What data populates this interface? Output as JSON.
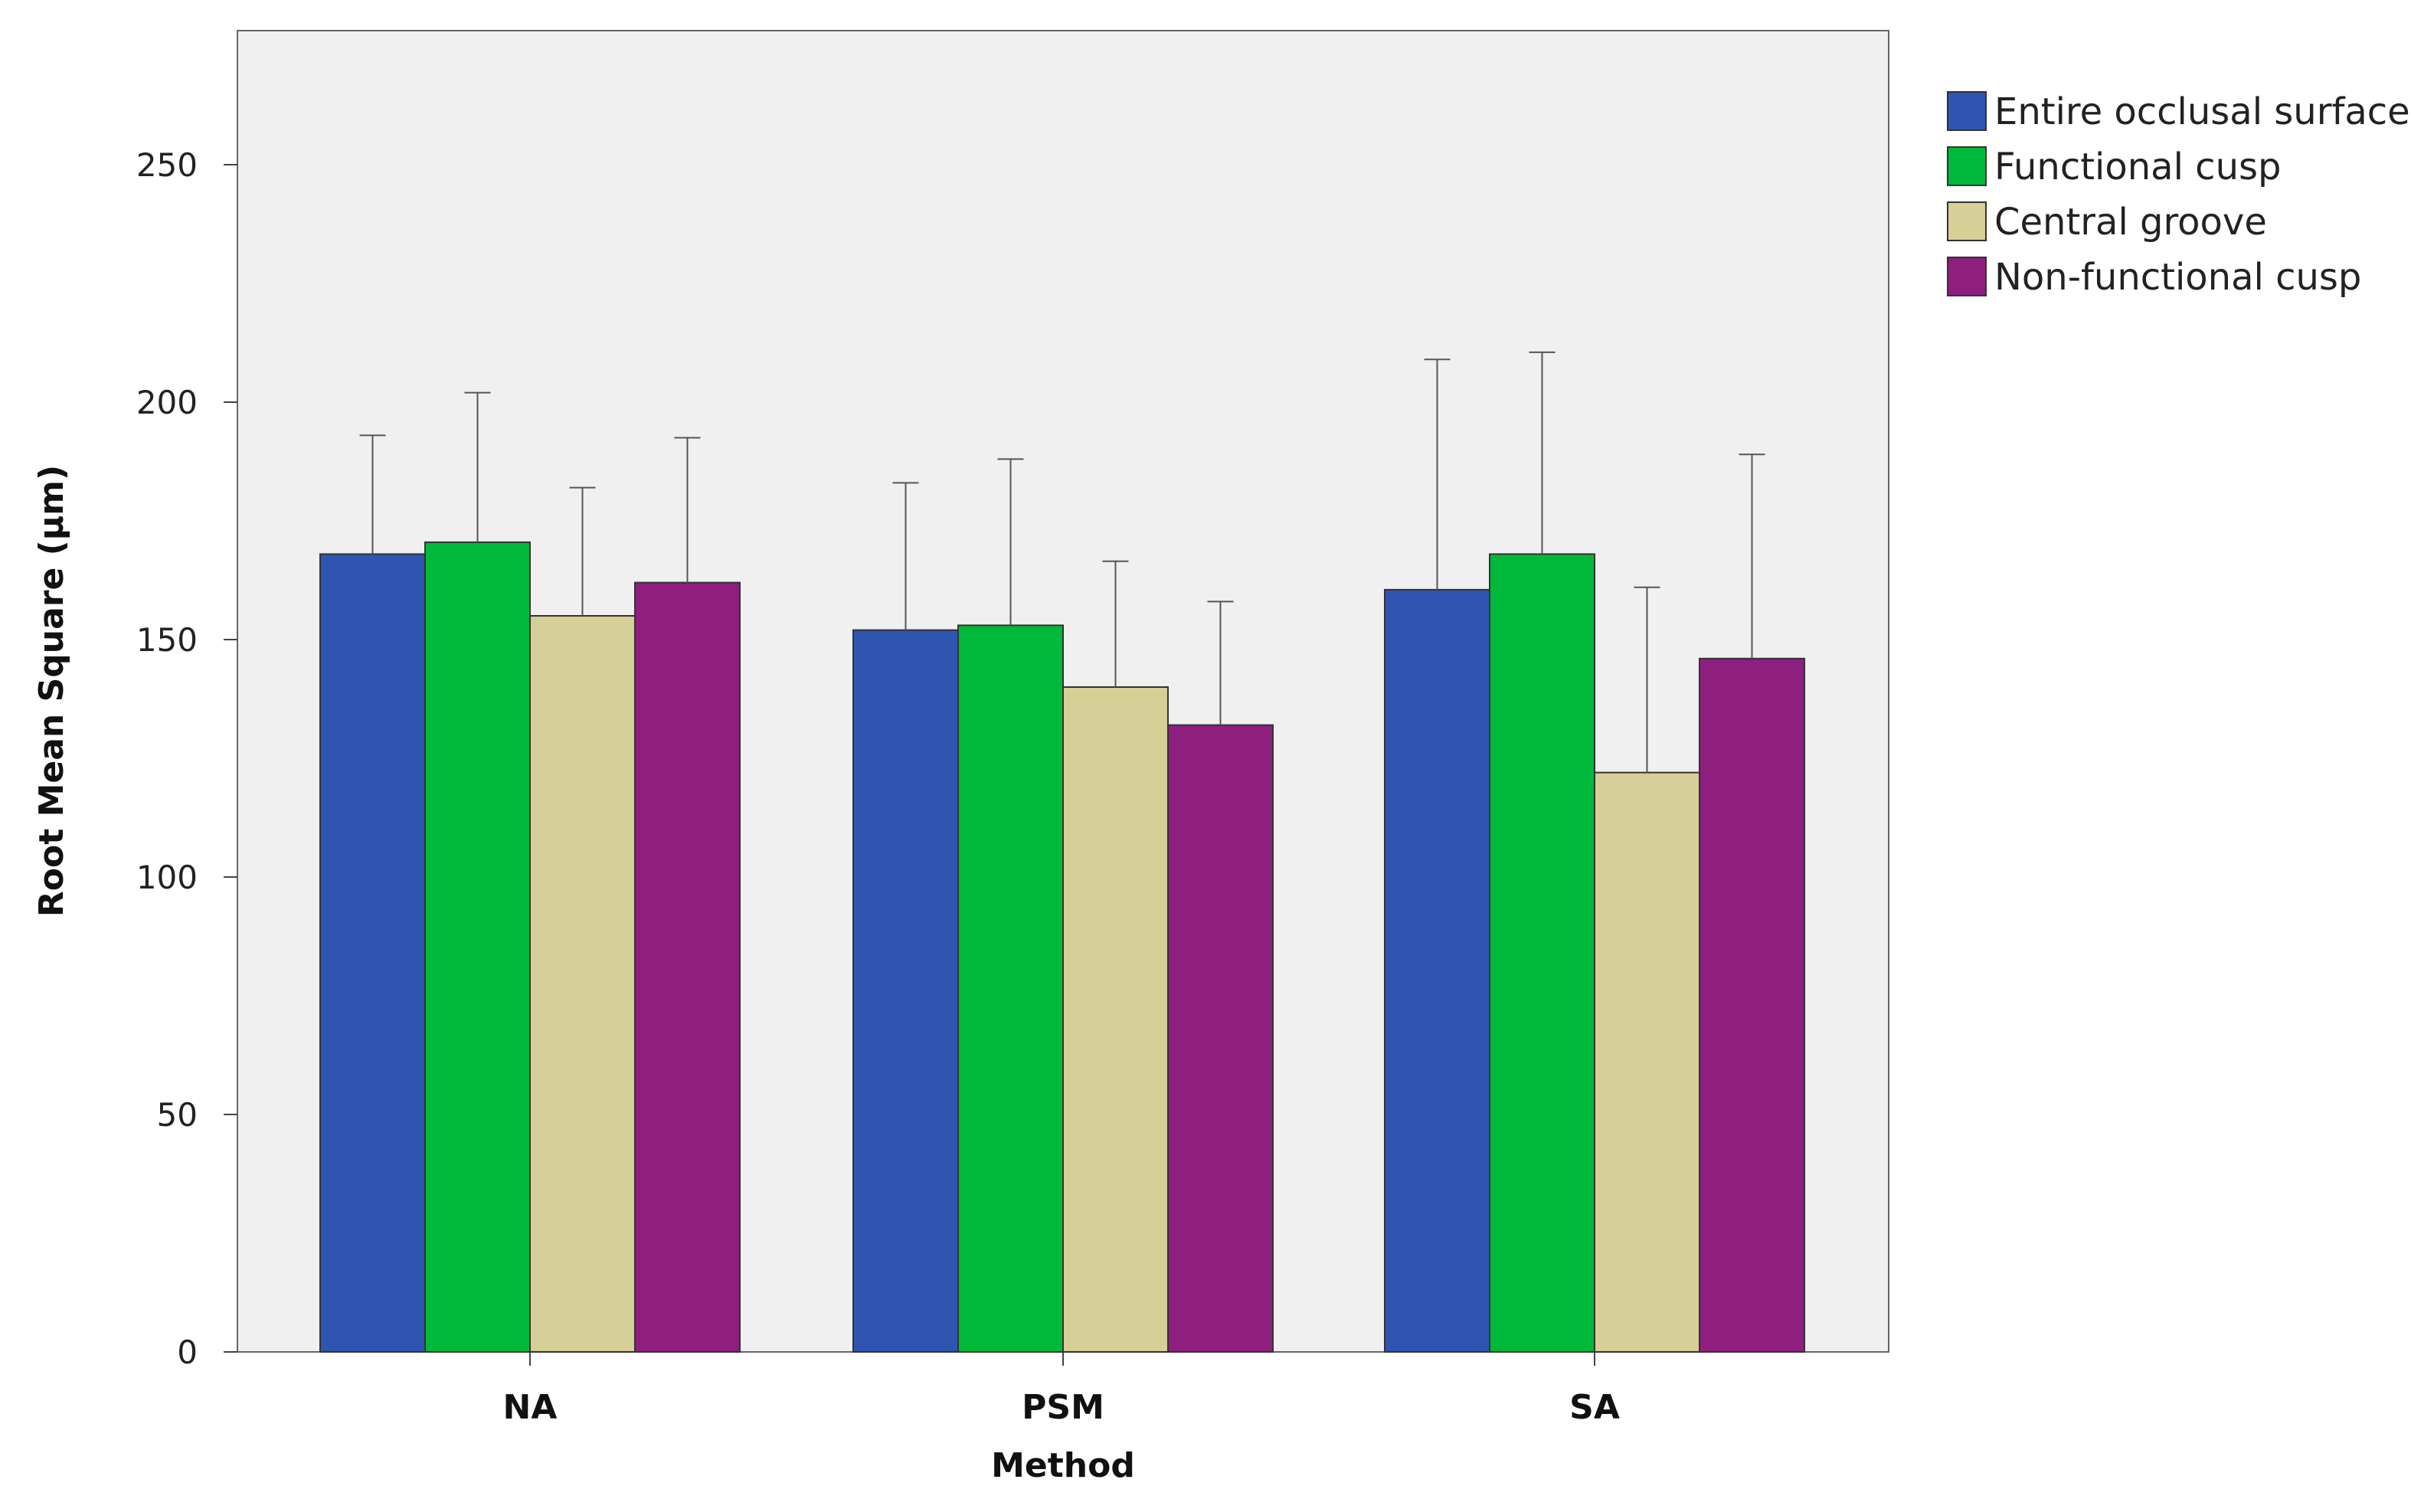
{
  "chart_data": {
    "type": "bar",
    "title": "",
    "xlabel": "Method",
    "ylabel": "Root Mean Square (µm)",
    "categories": [
      "NA",
      "PSM",
      "SA"
    ],
    "ylim": [
      0,
      275
    ],
    "yticks": [
      0,
      50,
      100,
      150,
      200,
      250
    ],
    "grid": false,
    "legend_position": "outside top-right",
    "error_bars": true,
    "series": [
      {
        "name": "Entire occlusal surface",
        "color": "#2E55B0",
        "values": [
          168,
          152,
          160.5
        ],
        "error_upper": [
          193,
          183,
          209
        ]
      },
      {
        "name": "Functional cusp",
        "color": "#00B93A",
        "values": [
          170.5,
          153,
          168
        ],
        "error_upper": [
          202,
          188,
          210.5
        ]
      },
      {
        "name": "Central groove",
        "color": "#D6CF97",
        "values": [
          155,
          140,
          122
        ],
        "error_upper": [
          182,
          166.5,
          161
        ]
      },
      {
        "name": "Non-functional cusp",
        "color": "#8E1F7E",
        "values": [
          162,
          132,
          146
        ],
        "error_upper": [
          192.5,
          158,
          189
        ]
      }
    ]
  }
}
